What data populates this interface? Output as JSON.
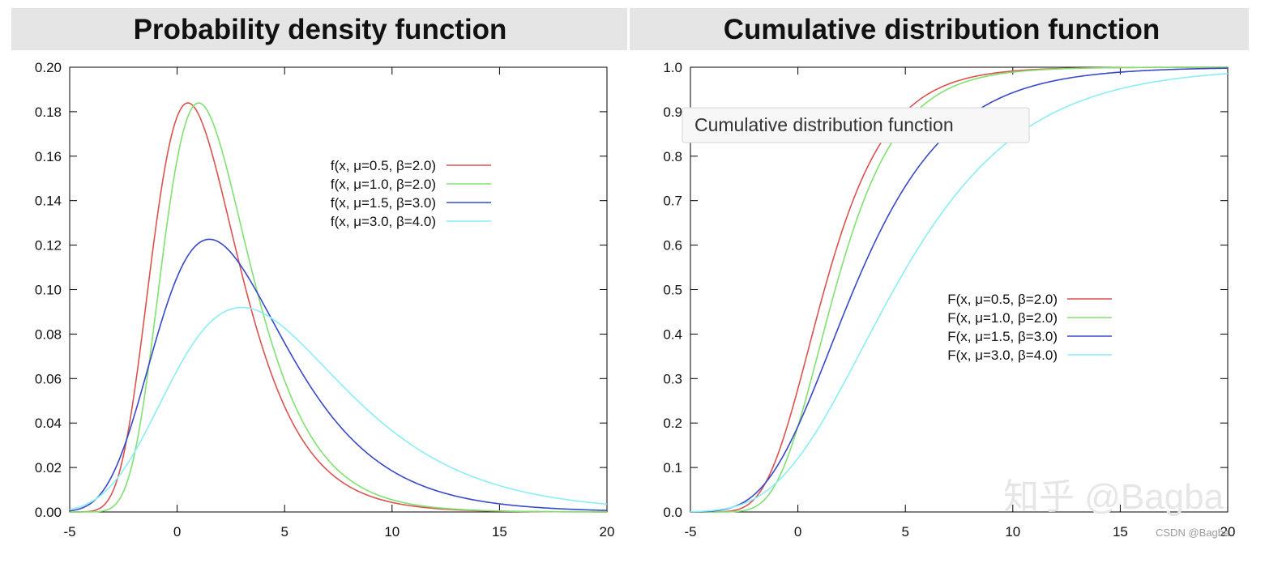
{
  "chart_data": [
    {
      "type": "line",
      "title": "Probability density function",
      "xlabel": "",
      "ylabel": "",
      "xlim": [
        -5,
        20
      ],
      "ylim": [
        0,
        0.2
      ],
      "x_ticks": [
        "-5",
        "0",
        "5",
        "10",
        "15",
        "20"
      ],
      "y_ticks": [
        "0.00",
        "0.02",
        "0.04",
        "0.06",
        "0.08",
        "0.10",
        "0.12",
        "0.14",
        "0.16",
        "0.18",
        "0.20"
      ],
      "grid": false,
      "legend_position": "top-right",
      "function": "gumbel_pdf",
      "series": [
        {
          "name": "f(x, μ=0.5, β=2.0)",
          "mu": 0.5,
          "beta": 2.0,
          "color": "#d9534f"
        },
        {
          "name": "f(x, μ=1.0, β=2.0)",
          "mu": 1.0,
          "beta": 2.0,
          "color": "#80e070"
        },
        {
          "name": "f(x, μ=1.5, β=3.0)",
          "mu": 1.5,
          "beta": 3.0,
          "color": "#3848c8"
        },
        {
          "name": "f(x, μ=3.0, β=4.0)",
          "mu": 3.0,
          "beta": 4.0,
          "color": "#8aeef5"
        }
      ]
    },
    {
      "type": "line",
      "title": "Cumulative distribution function",
      "xlabel": "",
      "ylabel": "",
      "xlim": [
        -5,
        20
      ],
      "ylim": [
        0,
        1.0
      ],
      "x_ticks": [
        "-5",
        "0",
        "5",
        "10",
        "15",
        "20"
      ],
      "y_ticks": [
        "0.0",
        "0.1",
        "0.2",
        "0.3",
        "0.4",
        "0.5",
        "0.6",
        "0.7",
        "0.8",
        "0.9",
        "1.0"
      ],
      "grid": false,
      "legend_position": "center-right",
      "function": "gumbel_cdf",
      "series": [
        {
          "name": "F(x, μ=0.5, β=2.0)",
          "mu": 0.5,
          "beta": 2.0,
          "color": "#d9534f"
        },
        {
          "name": "F(x, μ=1.0, β=2.0)",
          "mu": 1.0,
          "beta": 2.0,
          "color": "#80e070"
        },
        {
          "name": "F(x, μ=1.5, β=3.0)",
          "mu": 1.5,
          "beta": 3.0,
          "color": "#3848c8"
        },
        {
          "name": "F(x, μ=3.0, β=4.0)",
          "mu": 3.0,
          "beta": 4.0,
          "color": "#8aeef5"
        }
      ]
    }
  ],
  "tooltip": {
    "text": "Cumulative distribution function"
  },
  "watermark": {
    "main": "知乎 @Bagba",
    "csdn": "CSDN @Bagba"
  }
}
